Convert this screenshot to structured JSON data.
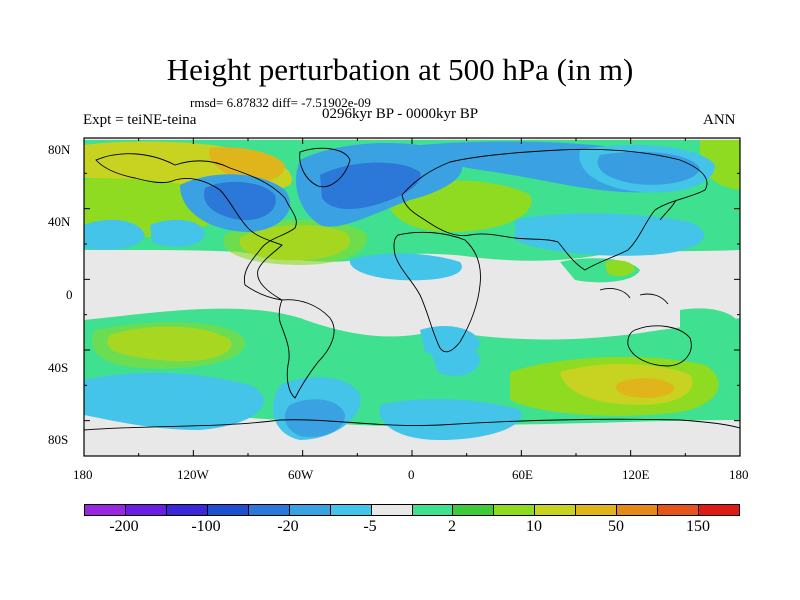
{
  "title": "Height perturbation at 500 hPa (in m)",
  "stats": "rmsd= 6.87832 diff= -7.51902e-09",
  "period": "0296kyr BP - 0000kyr BP",
  "experiment": "Expt = teiNE-teina",
  "season": "ANN",
  "axes": {
    "lat_labels": [
      "80N",
      "40N",
      "0",
      "40S",
      "80S"
    ],
    "lon_labels": [
      "180",
      "120W",
      "60W",
      "0",
      "60E",
      "120E",
      "180"
    ]
  },
  "colorbar": {
    "colors": [
      "#9a27e0",
      "#6a1fe0",
      "#3b27d8",
      "#1e4fcf",
      "#2b78d9",
      "#3aa2e3",
      "#44c4e8",
      "#e8e8e8",
      "#3fe08f",
      "#3fca3a",
      "#8edb22",
      "#c8d321",
      "#e0b51c",
      "#e58a1a",
      "#e5541a",
      "#e01a14"
    ],
    "labels": [
      "-200",
      "-100",
      "-20",
      "-5",
      "2",
      "10",
      "50",
      "150"
    ]
  },
  "map": {
    "background": "#e8e8e8"
  }
}
